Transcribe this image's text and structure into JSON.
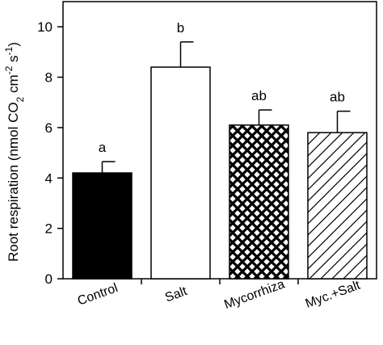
{
  "chart_data": {
    "type": "bar",
    "categories": [
      "Control",
      "Salt",
      "Mycorrhiza",
      "Myc.+Salt"
    ],
    "values": [
      4.2,
      8.4,
      6.1,
      5.8
    ],
    "errors": [
      0.45,
      1.0,
      0.6,
      0.85
    ],
    "significance": [
      "a",
      "b",
      "ab",
      "ab"
    ],
    "fills": [
      "solid-black",
      "white",
      "crosshatch",
      "diagonal-hatch"
    ],
    "ylabel": {
      "pre": "Root respiration (nmol CO",
      "sub": "2",
      "mid": " cm",
      "sup1": "-2",
      "mid2": " s",
      "sup2": "-1",
      "post": ")"
    },
    "ylim": [
      0,
      11
    ],
    "yticks": [
      "0",
      "2",
      "4",
      "6",
      "8",
      "10"
    ],
    "grid": false,
    "colors": {
      "bar_edge": "#000000",
      "solid": "#000000",
      "open": "#ffffff"
    }
  }
}
